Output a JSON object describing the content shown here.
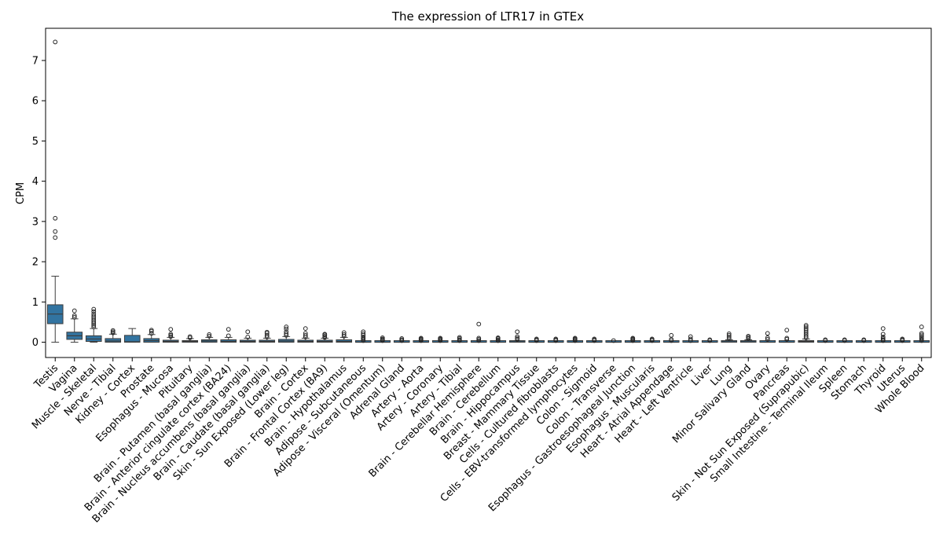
{
  "chart_data": {
    "type": "box",
    "title": "The expression of LTR17 in GTEx",
    "xlabel": "",
    "ylabel": "CPM",
    "ylim": [
      -0.38,
      7.8
    ],
    "yticks": [
      0,
      1,
      2,
      3,
      4,
      5,
      6,
      7
    ],
    "grid": false,
    "legend": "none",
    "box_color": "#3274a1",
    "categories": [
      "Testis",
      "Vagina",
      "Muscle - Skeletal",
      "Nerve - Tibial",
      "Kidney - Cortex",
      "Prostate",
      "Esophagus - Mucosa",
      "Pituitary",
      "Brain - Putamen (basal ganglia)",
      "Brain - Anterior cingulate cortex (BA24)",
      "Brain - Nucleus accumbens (basal ganglia)",
      "Brain - Caudate (basal ganglia)",
      "Skin - Sun Exposed (Lower leg)",
      "Brain - Cortex",
      "Brain - Frontal Cortex (BA9)",
      "Brain - Hypothalamus",
      "Adipose - Subcutaneous",
      "Adipose - Visceral (Omentum)",
      "Adrenal Gland",
      "Artery - Aorta",
      "Artery - Coronary",
      "Artery - Tibial",
      "Brain - Cerebellar Hemisphere",
      "Brain - Cerebellum",
      "Brain - Hippocampus",
      "Breast - Mammary Tissue",
      "Cells - Cultured fibroblasts",
      "Cells - EBV-transformed lymphocytes",
      "Colon - Sigmoid",
      "Colon - Transverse",
      "Esophagus - Gastroesophageal Junction",
      "Esophagus - Muscularis",
      "Heart - Atrial Appendage",
      "Heart - Left Ventricle",
      "Liver",
      "Lung",
      "Minor Salivary Gland",
      "Ovary",
      "Pancreas",
      "Skin - Not Sun Exposed (Suprapubic)",
      "Small Intestine - Terminal Ileum",
      "Spleen",
      "Stomach",
      "Thyroid",
      "Uterus",
      "Whole Blood"
    ],
    "boxes": [
      {
        "min": 0.0,
        "q1": 0.46,
        "median": 0.7,
        "q3": 0.93,
        "max": 1.64,
        "outliers": [
          2.6,
          2.75,
          3.08,
          7.46
        ]
      },
      {
        "min": 0.0,
        "q1": 0.07,
        "median": 0.16,
        "q3": 0.25,
        "max": 0.58,
        "outliers": [
          0.62,
          0.66,
          0.78
        ]
      },
      {
        "min": 0.0,
        "q1": 0.02,
        "median": 0.08,
        "q3": 0.16,
        "max": 0.34,
        "outliers": [
          0.38,
          0.42,
          0.46,
          0.5,
          0.55,
          0.6,
          0.65,
          0.7,
          0.76,
          0.82
        ]
      },
      {
        "min": 0.0,
        "q1": 0.0,
        "median": 0.03,
        "q3": 0.09,
        "max": 0.2,
        "outliers": [
          0.23,
          0.26,
          0.29
        ]
      },
      {
        "min": 0.0,
        "q1": 0.0,
        "median": 0.01,
        "q3": 0.17,
        "max": 0.34,
        "outliers": []
      },
      {
        "min": 0.0,
        "q1": 0.0,
        "median": 0.04,
        "q3": 0.09,
        "max": 0.19,
        "outliers": [
          0.22,
          0.27,
          0.3
        ]
      },
      {
        "min": 0.0,
        "q1": 0.0,
        "median": 0.02,
        "q3": 0.05,
        "max": 0.12,
        "outliers": [
          0.14,
          0.17,
          0.2,
          0.32
        ]
      },
      {
        "min": 0.0,
        "q1": 0.0,
        "median": 0.02,
        "q3": 0.04,
        "max": 0.09,
        "outliers": [
          0.11,
          0.14
        ]
      },
      {
        "min": 0.0,
        "q1": 0.0,
        "median": 0.03,
        "q3": 0.06,
        "max": 0.12,
        "outliers": [
          0.15,
          0.19
        ]
      },
      {
        "min": 0.0,
        "q1": 0.0,
        "median": 0.02,
        "q3": 0.06,
        "max": 0.12,
        "outliers": [
          0.16,
          0.32
        ]
      },
      {
        "min": 0.0,
        "q1": 0.0,
        "median": 0.02,
        "q3": 0.05,
        "max": 0.1,
        "outliers": [
          0.13,
          0.26
        ]
      },
      {
        "min": 0.0,
        "q1": 0.0,
        "median": 0.02,
        "q3": 0.05,
        "max": 0.1,
        "outliers": [
          0.13,
          0.17,
          0.22,
          0.25
        ]
      },
      {
        "min": 0.0,
        "q1": 0.0,
        "median": 0.03,
        "q3": 0.07,
        "max": 0.14,
        "outliers": [
          0.17,
          0.21,
          0.26,
          0.33,
          0.38
        ]
      },
      {
        "min": 0.0,
        "q1": 0.0,
        "median": 0.02,
        "q3": 0.05,
        "max": 0.1,
        "outliers": [
          0.13,
          0.17,
          0.22,
          0.34
        ]
      },
      {
        "min": 0.0,
        "q1": 0.0,
        "median": 0.02,
        "q3": 0.05,
        "max": 0.1,
        "outliers": [
          0.12,
          0.15,
          0.18,
          0.2
        ]
      },
      {
        "min": 0.0,
        "q1": 0.0,
        "median": 0.02,
        "q3": 0.06,
        "max": 0.12,
        "outliers": [
          0.15,
          0.19,
          0.24
        ]
      },
      {
        "min": 0.0,
        "q1": 0.0,
        "median": 0.0,
        "q3": 0.01,
        "max": 0.02,
        "outliers": [
          0.04,
          0.07,
          0.1,
          0.13,
          0.17,
          0.21,
          0.26
        ]
      },
      {
        "min": 0.0,
        "q1": 0.0,
        "median": 0.0,
        "q3": 0.01,
        "max": 0.02,
        "outliers": [
          0.04,
          0.06,
          0.08,
          0.11
        ]
      },
      {
        "min": 0.0,
        "q1": 0.0,
        "median": 0.0,
        "q3": 0.01,
        "max": 0.02,
        "outliers": [
          0.04,
          0.06,
          0.09
        ]
      },
      {
        "min": 0.0,
        "q1": 0.0,
        "median": 0.0,
        "q3": 0.01,
        "max": 0.02,
        "outliers": [
          0.04,
          0.06,
          0.08,
          0.1
        ]
      },
      {
        "min": 0.0,
        "q1": 0.0,
        "median": 0.0,
        "q3": 0.01,
        "max": 0.02,
        "outliers": [
          0.04,
          0.06,
          0.08,
          0.1
        ]
      },
      {
        "min": 0.0,
        "q1": 0.0,
        "median": 0.0,
        "q3": 0.01,
        "max": 0.02,
        "outliers": [
          0.04,
          0.06,
          0.09,
          0.12
        ]
      },
      {
        "min": 0.0,
        "q1": 0.0,
        "median": 0.0,
        "q3": 0.01,
        "max": 0.02,
        "outliers": [
          0.04,
          0.07,
          0.1,
          0.45
        ]
      },
      {
        "min": 0.0,
        "q1": 0.0,
        "median": 0.0,
        "q3": 0.01,
        "max": 0.02,
        "outliers": [
          0.04,
          0.06,
          0.09,
          0.11
        ]
      },
      {
        "min": 0.0,
        "q1": 0.0,
        "median": 0.01,
        "q3": 0.02,
        "max": 0.04,
        "outliers": [
          0.07,
          0.1,
          0.14,
          0.26
        ]
      },
      {
        "min": 0.0,
        "q1": 0.0,
        "median": 0.0,
        "q3": 0.01,
        "max": 0.02,
        "outliers": [
          0.04,
          0.06,
          0.08
        ]
      },
      {
        "min": 0.0,
        "q1": 0.0,
        "median": 0.0,
        "q3": 0.01,
        "max": 0.02,
        "outliers": [
          0.04,
          0.06,
          0.08
        ]
      },
      {
        "min": 0.0,
        "q1": 0.0,
        "median": 0.0,
        "q3": 0.01,
        "max": 0.02,
        "outliers": [
          0.04,
          0.06,
          0.08,
          0.1
        ]
      },
      {
        "min": 0.0,
        "q1": 0.0,
        "median": 0.0,
        "q3": 0.01,
        "max": 0.02,
        "outliers": [
          0.04,
          0.06,
          0.08
        ]
      },
      {
        "min": 0.0,
        "q1": 0.0,
        "median": 0.0,
        "q3": 0.01,
        "max": 0.02,
        "outliers": [
          0.04
        ]
      },
      {
        "min": 0.0,
        "q1": 0.0,
        "median": 0.0,
        "q3": 0.01,
        "max": 0.02,
        "outliers": [
          0.04,
          0.06,
          0.08,
          0.1
        ]
      },
      {
        "min": 0.0,
        "q1": 0.0,
        "median": 0.0,
        "q3": 0.01,
        "max": 0.02,
        "outliers": [
          0.04,
          0.06,
          0.08
        ]
      },
      {
        "min": 0.0,
        "q1": 0.0,
        "median": 0.0,
        "q3": 0.01,
        "max": 0.02,
        "outliers": [
          0.04,
          0.07,
          0.17
        ]
      },
      {
        "min": 0.0,
        "q1": 0.0,
        "median": 0.0,
        "q3": 0.01,
        "max": 0.02,
        "outliers": [
          0.04,
          0.08,
          0.14
        ]
      },
      {
        "min": 0.0,
        "q1": 0.0,
        "median": 0.0,
        "q3": 0.01,
        "max": 0.02,
        "outliers": [
          0.04,
          0.06
        ]
      },
      {
        "min": 0.0,
        "q1": 0.0,
        "median": 0.01,
        "q3": 0.03,
        "max": 0.06,
        "outliers": [
          0.09,
          0.13,
          0.17,
          0.21
        ]
      },
      {
        "min": 0.0,
        "q1": 0.0,
        "median": 0.01,
        "q3": 0.03,
        "max": 0.06,
        "outliers": [
          0.09,
          0.12,
          0.15
        ]
      },
      {
        "min": 0.0,
        "q1": 0.0,
        "median": 0.0,
        "q3": 0.02,
        "max": 0.04,
        "outliers": [
          0.07,
          0.11,
          0.22
        ]
      },
      {
        "min": 0.0,
        "q1": 0.0,
        "median": 0.0,
        "q3": 0.02,
        "max": 0.04,
        "outliers": [
          0.07,
          0.1,
          0.3
        ]
      },
      {
        "min": 0.0,
        "q1": 0.0,
        "median": 0.02,
        "q3": 0.04,
        "max": 0.08,
        "outliers": [
          0.11,
          0.15,
          0.2,
          0.25,
          0.3,
          0.34,
          0.38,
          0.42
        ]
      },
      {
        "min": 0.0,
        "q1": 0.0,
        "median": 0.0,
        "q3": 0.01,
        "max": 0.02,
        "outliers": [
          0.04,
          0.06
        ]
      },
      {
        "min": 0.0,
        "q1": 0.0,
        "median": 0.0,
        "q3": 0.01,
        "max": 0.02,
        "outliers": [
          0.04,
          0.06
        ]
      },
      {
        "min": 0.0,
        "q1": 0.0,
        "median": 0.0,
        "q3": 0.01,
        "max": 0.02,
        "outliers": [
          0.04,
          0.06
        ]
      },
      {
        "min": 0.0,
        "q1": 0.0,
        "median": 0.0,
        "q3": 0.01,
        "max": 0.02,
        "outliers": [
          0.04,
          0.06,
          0.09,
          0.13,
          0.2,
          0.34
        ]
      },
      {
        "min": 0.0,
        "q1": 0.0,
        "median": 0.0,
        "q3": 0.01,
        "max": 0.02,
        "outliers": [
          0.04,
          0.06,
          0.08
        ]
      },
      {
        "min": 0.0,
        "q1": 0.0,
        "median": 0.0,
        "q3": 0.01,
        "max": 0.02,
        "outliers": [
          0.04,
          0.07,
          0.1,
          0.14,
          0.18,
          0.22,
          0.38
        ]
      }
    ]
  }
}
